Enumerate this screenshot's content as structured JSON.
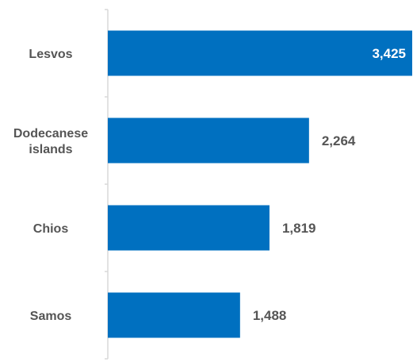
{
  "chart_data": {
    "type": "bar",
    "orientation": "horizontal",
    "categories": [
      [
        "Lesvos"
      ],
      [
        "Dodecanese",
        "islands"
      ],
      [
        "Chios"
      ],
      [
        "Samos"
      ]
    ],
    "values": [
      3425,
      2264,
      1819,
      1488
    ],
    "value_labels": [
      "3,425",
      "2,264",
      "1,819",
      "1,488"
    ],
    "xlim": [
      0,
      3425
    ],
    "bar_color": "#0070C0",
    "axis_color": "#D9D9D9",
    "inside_label_color": "#ffffff",
    "outside_label_color": "#555555",
    "grid": false,
    "legend": "none"
  }
}
